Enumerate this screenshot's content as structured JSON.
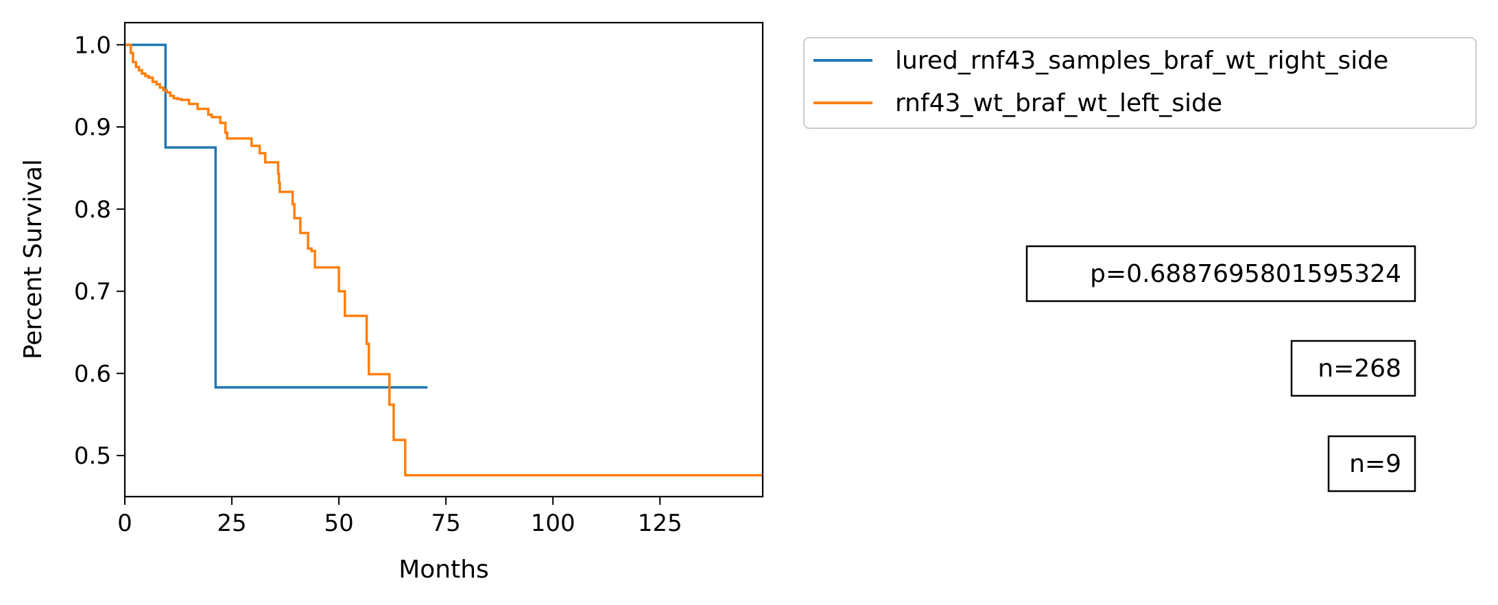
{
  "chart_data": {
    "type": "line",
    "title": "",
    "xlabel": "Months",
    "ylabel": "Percent Survival",
    "xlim": [
      0,
      149
    ],
    "ylim": [
      0.45,
      1.027
    ],
    "xticks": [
      0,
      25,
      50,
      75,
      100,
      125
    ],
    "yticks": [
      0.5,
      0.6,
      0.7,
      0.8,
      0.9,
      1.0
    ],
    "xtick_labels": [
      "0",
      "25",
      "50",
      "75",
      "100",
      "125"
    ],
    "ytick_labels": [
      "0.5",
      "0.6",
      "0.7",
      "0.8",
      "0.9",
      "1.0"
    ],
    "grid": false,
    "legend_position": "outside-top-right",
    "series": [
      {
        "name": "lured_rnf43_samples_braf_wt_right_side",
        "color": "#1f77b4",
        "step": "post",
        "x": [
          0,
          9.5,
          21.2,
          70.7
        ],
        "y": [
          1.0,
          0.875,
          0.583,
          0.583
        ]
      },
      {
        "name": "rnf43_wt_braf_wt_left_side",
        "color": "#ff7f0e",
        "step": "post",
        "x": [
          0,
          1.4,
          1.9,
          2.6,
          3.3,
          4.0,
          4.8,
          5.6,
          6.5,
          7.4,
          8.2,
          9.0,
          9.8,
          10.6,
          11.4,
          12.3,
          13.2,
          15.0,
          17.0,
          19.5,
          20.3,
          22.3,
          23.5,
          23.9,
          25.0,
          29.6,
          31.5,
          32.8,
          35.8,
          36.0,
          36.2,
          39.2,
          39.6,
          41.0,
          42.8,
          43.6,
          44.4,
          50.0,
          51.4,
          56.5,
          57.0,
          61.8,
          62.8,
          65.5,
          149
        ],
        "y": [
          1.0,
          0.99,
          0.979,
          0.973,
          0.969,
          0.965,
          0.962,
          0.96,
          0.955,
          0.952,
          0.948,
          0.945,
          0.942,
          0.938,
          0.935,
          0.934,
          0.933,
          0.928,
          0.922,
          0.915,
          0.912,
          0.905,
          0.893,
          0.886,
          0.886,
          0.877,
          0.868,
          0.857,
          0.843,
          0.832,
          0.821,
          0.806,
          0.789,
          0.771,
          0.752,
          0.749,
          0.729,
          0.7,
          0.67,
          0.636,
          0.599,
          0.562,
          0.519,
          0.476,
          0.476
        ]
      }
    ],
    "annotations": [
      "p=0.6887695801595324",
      "n=268",
      "n=9"
    ]
  }
}
